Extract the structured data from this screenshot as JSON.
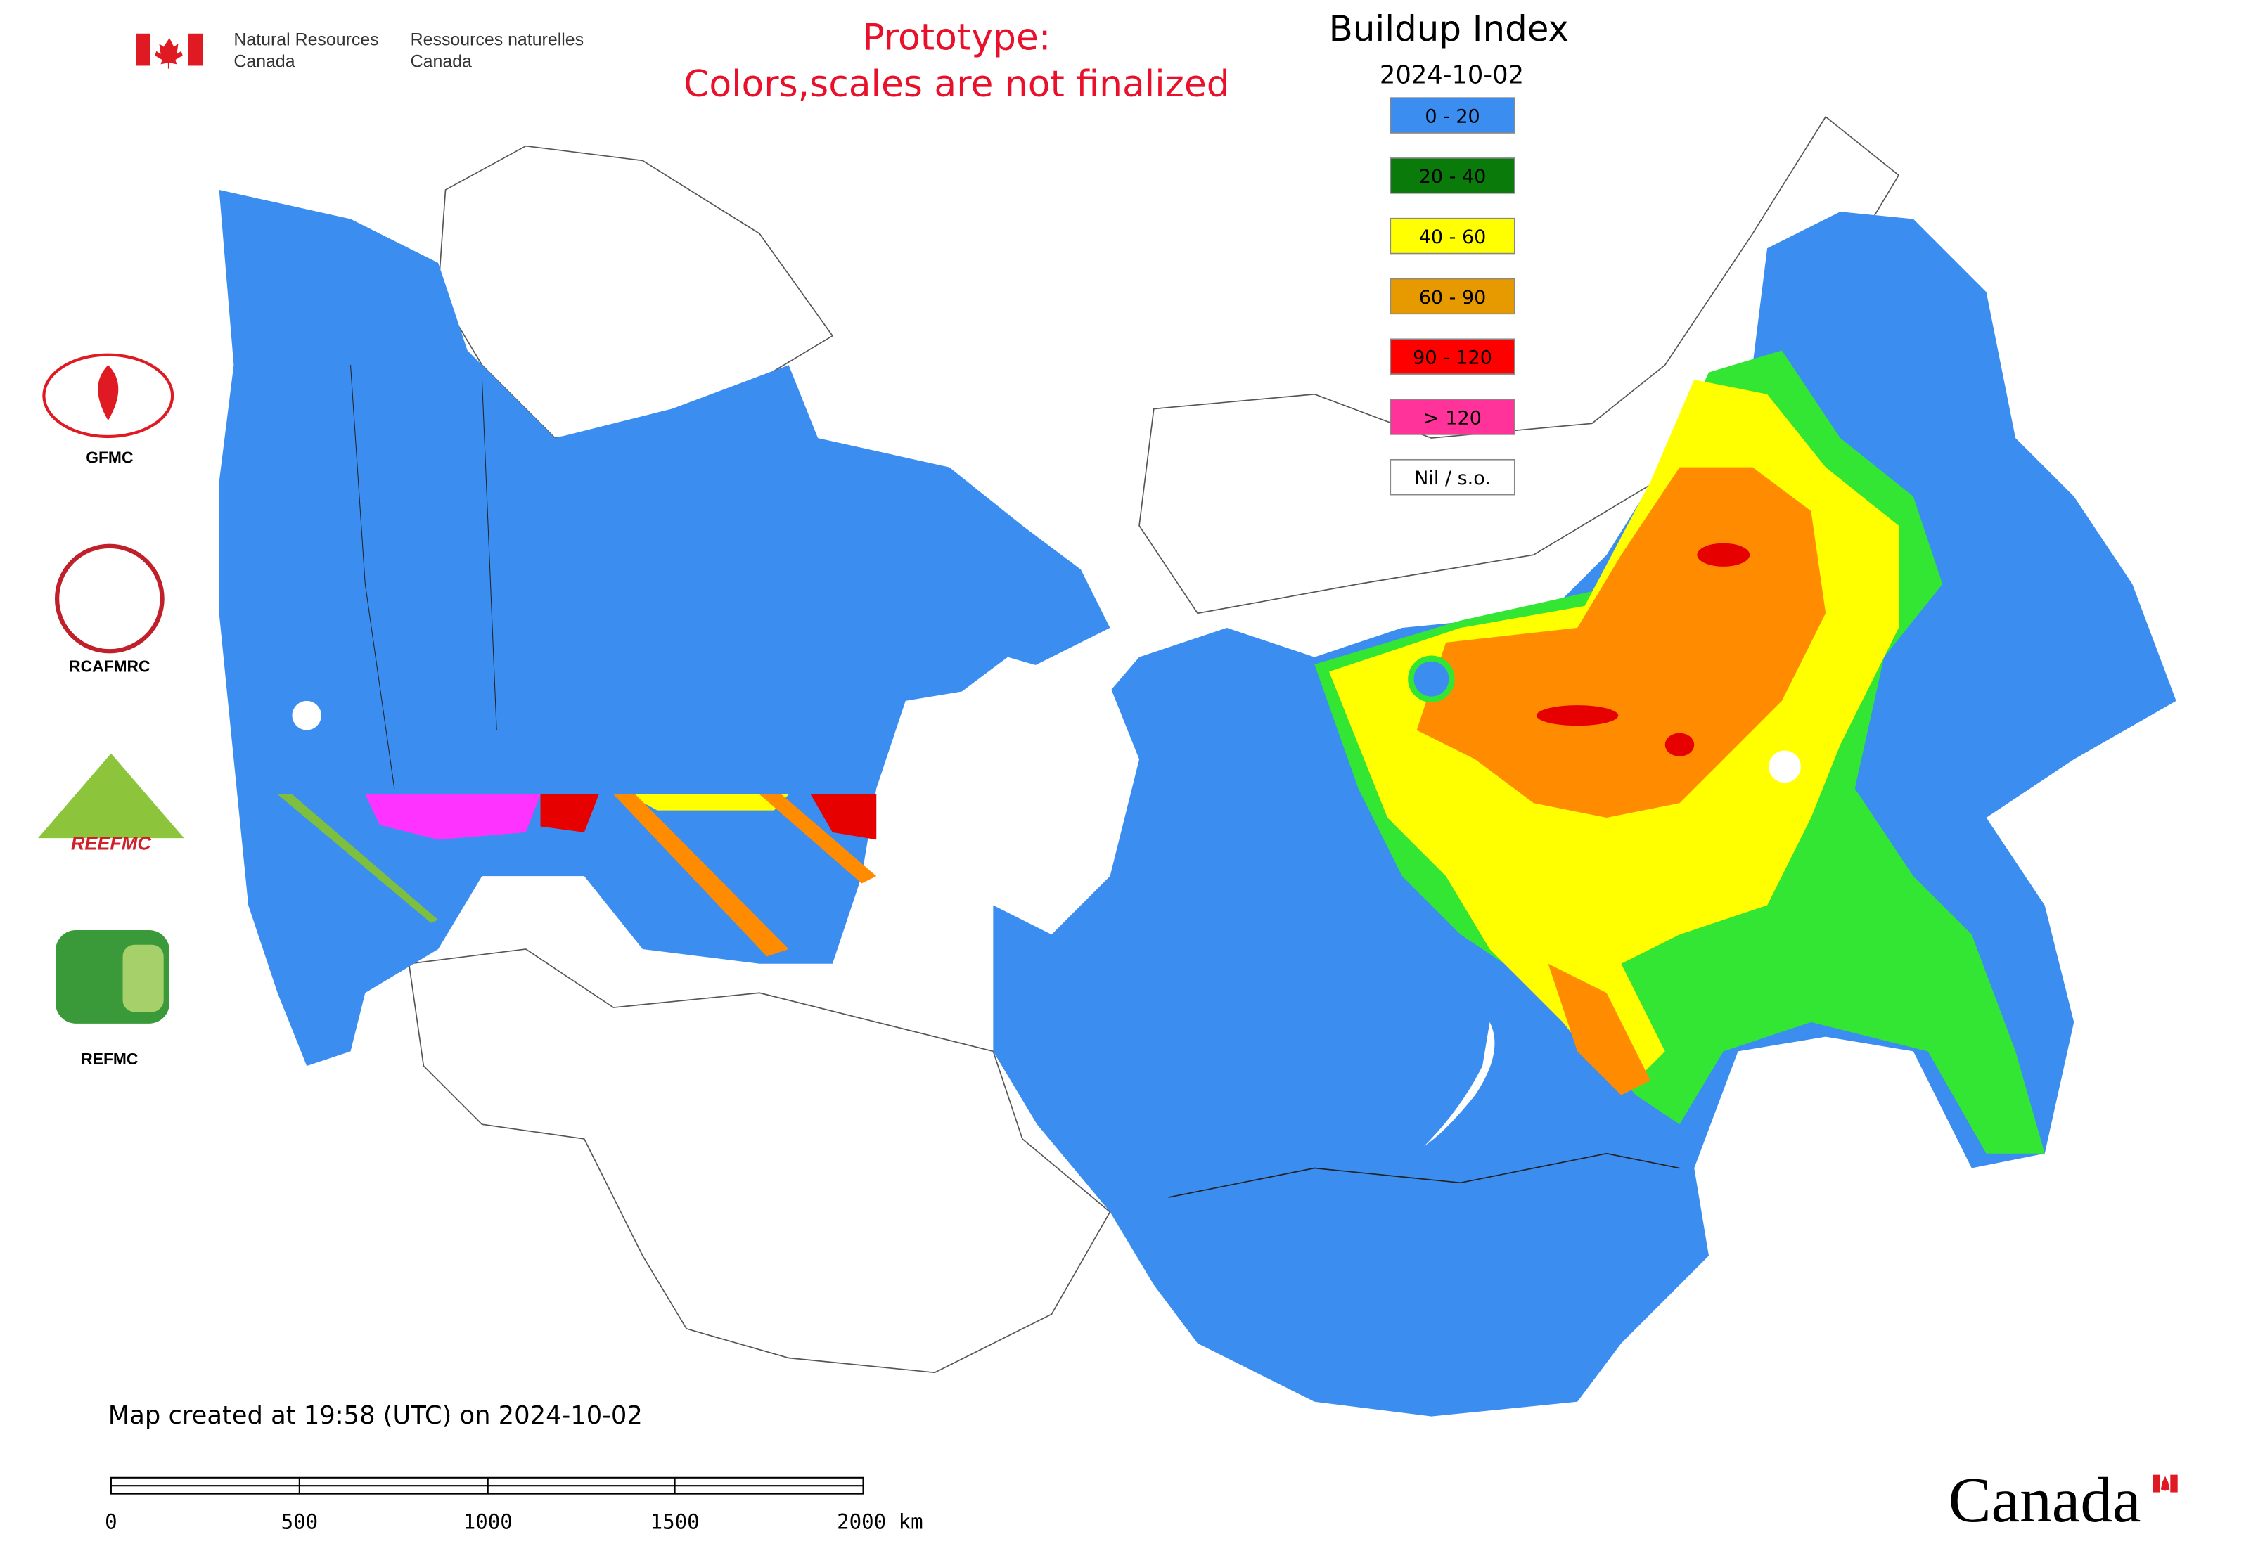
{
  "header": {
    "agency_en": [
      "Natural Resources",
      "Canada"
    ],
    "agency_fr": [
      "Ressources naturelles",
      "Canada"
    ]
  },
  "notice": [
    "Prototype:",
    "Colors,scales are not finalized"
  ],
  "legend": {
    "title": "Buildup Index",
    "date": "2024-10-02",
    "items": [
      {
        "label": "0 - 20",
        "color": "#3b8ef0"
      },
      {
        "label": "20 - 40",
        "color": "#0a7a0a"
      },
      {
        "label": "40 - 60",
        "color": "#ffff00"
      },
      {
        "label": "60 - 90",
        "color": "#e69a00"
      },
      {
        "label": "90 - 120",
        "color": "#ff0000"
      },
      {
        "label": "> 120",
        "color": "#ff3399"
      },
      {
        "label": "Nil / s.o.",
        "color": "#ffffff"
      }
    ]
  },
  "logos": [
    "GFMC",
    "RCAFMRC",
    "REEFMC",
    "REFMC"
  ],
  "footer": {
    "created": "Map created at 19:58 (UTC) on 2024-10-02",
    "scale_labels": [
      "0",
      "500",
      "1000",
      "1500",
      "2000 km"
    ],
    "wordmark": "Canada"
  }
}
